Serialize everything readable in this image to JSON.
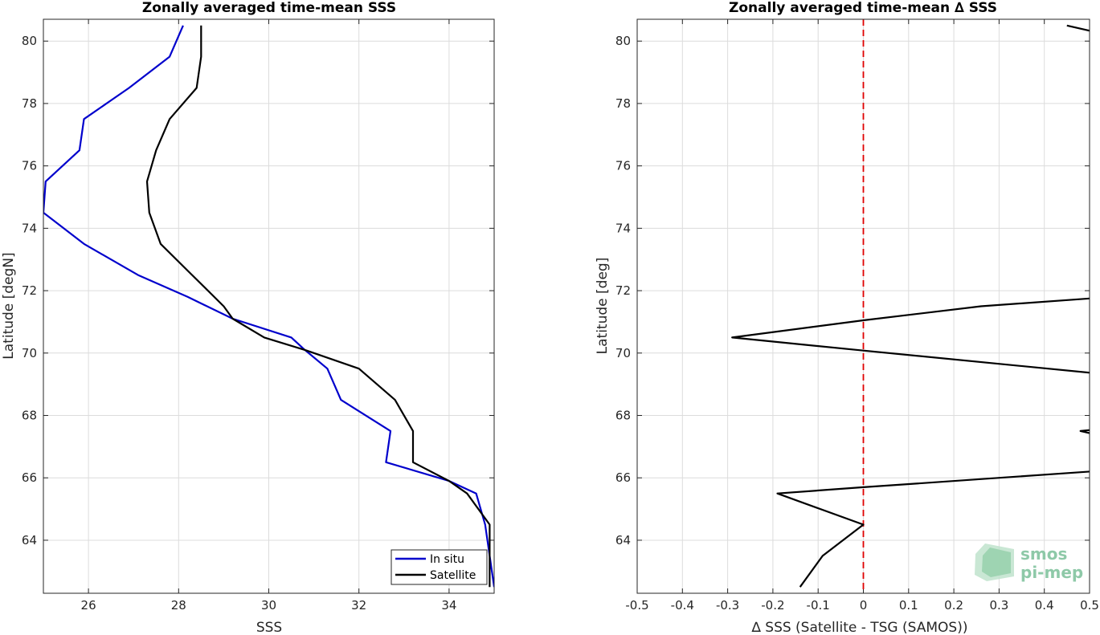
{
  "chart_data": [
    {
      "type": "line",
      "title": "Zonally averaged time-mean SSS",
      "xlabel": "SSS",
      "ylabel": "Latitude [degN]",
      "xlim": [
        25,
        35
      ],
      "ylim": [
        62.3,
        80.7
      ],
      "xticks": [
        26,
        28,
        30,
        32,
        34
      ],
      "yticks": [
        64,
        66,
        68,
        70,
        72,
        74,
        76,
        78,
        80
      ],
      "grid": true,
      "legend": "bottom-right",
      "series": [
        {
          "name": "In situ",
          "color": "#0000cc",
          "points": [
            [
              28.1,
              80.5
            ],
            [
              27.8,
              79.5
            ],
            [
              26.9,
              78.5
            ],
            [
              25.9,
              77.5
            ],
            [
              25.8,
              76.5
            ],
            [
              25.05,
              75.5
            ],
            [
              25.0,
              74.5
            ],
            [
              25.9,
              73.5
            ],
            [
              27.1,
              72.5
            ],
            [
              28.2,
              71.8
            ],
            [
              29.2,
              71.1
            ],
            [
              30.5,
              70.5
            ],
            [
              30.8,
              70.1
            ],
            [
              31.3,
              69.5
            ],
            [
              31.6,
              68.5
            ],
            [
              32.7,
              67.5
            ],
            [
              32.6,
              66.5
            ],
            [
              34.0,
              65.9
            ],
            [
              34.6,
              65.5
            ],
            [
              34.8,
              64.5
            ],
            [
              34.9,
              63.5
            ],
            [
              35.0,
              62.5
            ]
          ]
        },
        {
          "name": "Satellite",
          "color": "#000000",
          "points": [
            [
              28.5,
              80.5
            ],
            [
              28.5,
              79.5
            ],
            [
              28.4,
              78.5
            ],
            [
              27.8,
              77.5
            ],
            [
              27.5,
              76.5
            ],
            [
              27.3,
              75.5
            ],
            [
              27.35,
              74.5
            ],
            [
              27.6,
              73.5
            ],
            [
              28.3,
              72.5
            ],
            [
              29.0,
              71.5
            ],
            [
              29.2,
              71.1
            ],
            [
              29.9,
              70.5
            ],
            [
              30.8,
              70.1
            ],
            [
              32.0,
              69.5
            ],
            [
              32.8,
              68.5
            ],
            [
              33.2,
              67.5
            ],
            [
              33.2,
              66.5
            ],
            [
              34.0,
              65.9
            ],
            [
              34.4,
              65.5
            ],
            [
              34.9,
              64.5
            ],
            [
              34.9,
              63.5
            ],
            [
              34.9,
              62.5
            ]
          ]
        }
      ]
    },
    {
      "type": "line",
      "title": "Zonally averaged time-mean ∆ SSS",
      "xlabel": "∆ SSS (Satellite - TSG (SAMOS))",
      "ylabel": "Latitude [deg]",
      "xlim": [
        -0.5,
        0.5
      ],
      "ylim": [
        62.3,
        80.7
      ],
      "xticks": [
        -0.5,
        -0.4,
        -0.3,
        -0.2,
        -0.1,
        0,
        0.1,
        0.2,
        0.3,
        0.4,
        0.5
      ],
      "yticks": [
        64,
        66,
        68,
        70,
        72,
        74,
        76,
        78,
        80
      ],
      "grid": true,
      "reference_line": {
        "x": 0,
        "color": "#e00000",
        "style": "dashed"
      },
      "series": [
        {
          "name": "",
          "color": "#000000",
          "segments": [
            [
              [
                0.45,
                80.5
              ],
              [
                0.6,
                80.0
              ]
            ],
            [
              [
                0.55,
                71.8
              ],
              [
                0.26,
                71.5
              ],
              [
                0.0,
                71.05
              ],
              [
                -0.29,
                70.5
              ],
              [
                0.0,
                70.08
              ],
              [
                0.55,
                69.3
              ]
            ],
            [
              [
                0.6,
                67.1
              ],
              [
                0.48,
                67.5
              ],
              [
                0.55,
                67.6
              ]
            ],
            [
              [
                0.55,
                66.25
              ],
              [
                0.0,
                65.7
              ],
              [
                -0.19,
                65.5
              ],
              [
                0.0,
                64.5
              ],
              [
                -0.09,
                63.5
              ],
              [
                -0.14,
                62.5
              ]
            ]
          ]
        }
      ]
    }
  ],
  "logo": {
    "line1": "smos",
    "line2": "pi-mep"
  }
}
